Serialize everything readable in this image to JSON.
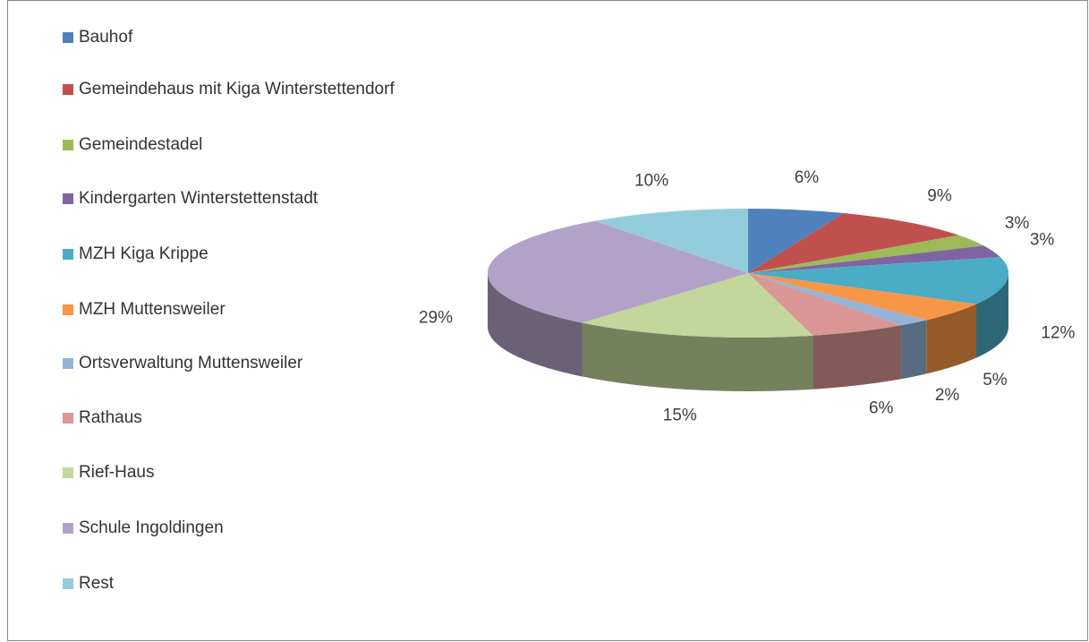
{
  "chart_data": {
    "type": "pie3d",
    "categories": [
      "Bauhof",
      "Gemeindehaus mit Kiga Winterstettendorf",
      "Gemeindestadel",
      "Kindergarten Winterstettenstadt",
      "MZH Kiga Krippe",
      "MZH Muttensweiler",
      "Ortsverwaltung Muttensweiler",
      "Rathaus",
      "Rief-Haus",
      "Schule Ingoldingen",
      "Rest"
    ],
    "values": [
      6,
      9,
      3,
      3,
      12,
      5,
      2,
      6,
      15,
      29,
      10
    ],
    "value_labels": [
      "6%",
      "9%",
      "3%",
      "3%",
      "12%",
      "5%",
      "2%",
      "6%",
      "15%",
      "29%",
      "10%"
    ],
    "colors": [
      "#4f81bd",
      "#c0504d",
      "#9bbb59",
      "#8064a2",
      "#4bacc6",
      "#f79646",
      "#95b3d7",
      "#d99694",
      "#c3d69b",
      "#b3a2c7",
      "#93cddd"
    ],
    "legend": "left"
  }
}
